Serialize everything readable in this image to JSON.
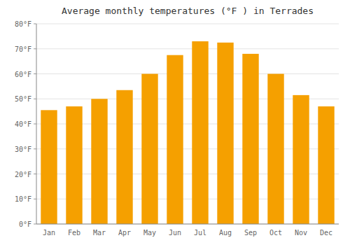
{
  "chart_data": {
    "type": "bar",
    "title": "Average monthly temperatures (°F ) in Terrades",
    "categories": [
      "Jan",
      "Feb",
      "Mar",
      "Apr",
      "May",
      "Jun",
      "Jul",
      "Aug",
      "Sep",
      "Oct",
      "Nov",
      "Dec"
    ],
    "values": [
      45.5,
      47.0,
      50.0,
      53.5,
      60.0,
      67.5,
      73.0,
      72.5,
      68.0,
      60.0,
      51.5,
      47.0
    ],
    "color": "#F5A000",
    "ylim": [
      0,
      80
    ],
    "yticks": [
      {
        "value": 0,
        "label": "0°F"
      },
      {
        "value": 10,
        "label": "10°F"
      },
      {
        "value": 20,
        "label": "20°F"
      },
      {
        "value": 30,
        "label": "30°F"
      },
      {
        "value": 40,
        "label": "40°F"
      },
      {
        "value": 50,
        "label": "50°F"
      },
      {
        "value": 60,
        "label": "60°F"
      },
      {
        "value": 70,
        "label": "70°F"
      },
      {
        "value": 80,
        "label": "80°F"
      }
    ],
    "grid": true
  }
}
